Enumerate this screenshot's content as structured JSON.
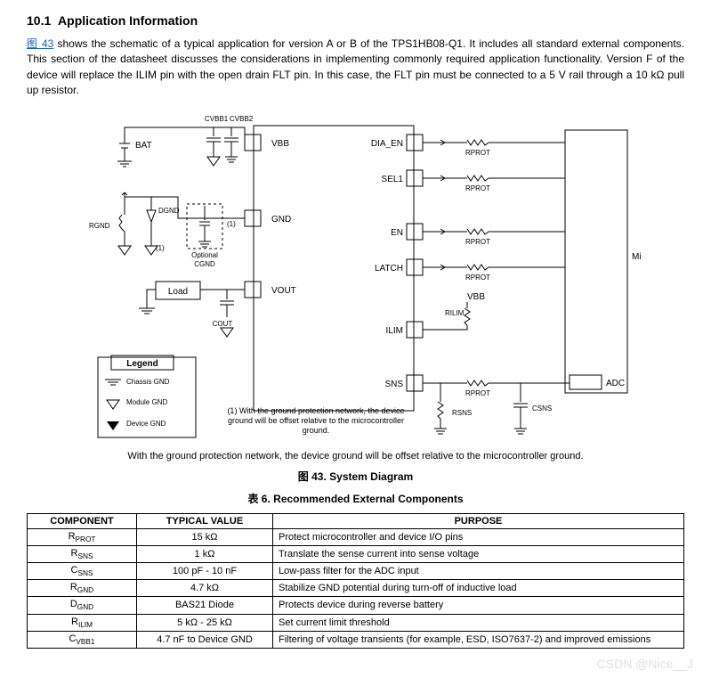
{
  "section": {
    "number": "10.1",
    "title": "Application Information"
  },
  "intro": {
    "figref": "图 43",
    "body": " shows the schematic of a typical application for version A or B of the TPS1HB08-Q1. It includes all standard external components. This section of the datasheet discusses the considerations in implementing commonly required application functionality. Version F of the device will replace the ILIM pin with the open drain FLT pin. In this case, the FLT pin must be connected to a 5 V rail through a 10 kΩ pull up resistor."
  },
  "diagram": {
    "pins_left": [
      "VBB",
      "GND",
      "VOUT"
    ],
    "pins_right": [
      "DIA_EN",
      "SEL1",
      "EN",
      "LATCH",
      "ILIM",
      "SNS"
    ],
    "bat": "BAT",
    "load": "Load",
    "micro": "Microcontroller",
    "adc": "ADC",
    "cvbb1": "CVBB1",
    "cvbb2": "CVBB2",
    "cout": "COUT",
    "optional": "Optional",
    "cgnd": "CGND",
    "rgnd": "RGND",
    "dgnd": "DGND",
    "rprot": "RPROT",
    "rilim": "RILIM",
    "rsns": "RSNS",
    "csns": "CSNS",
    "vbb": "VBB",
    "one": "(1)",
    "legend": {
      "title": "Legend",
      "chassis": "Chassis GND",
      "module": "Module GND",
      "device": "Device GND"
    },
    "note": "(1) With the ground protection network, the device ground will be offset relative to the microcontroller ground."
  },
  "footnote": "With the ground protection network, the device ground will be offset relative to the microcontroller ground.",
  "fig_caption_pre": "图 43.  ",
  "fig_caption": "System Diagram",
  "tbl_caption_pre": "表 6. ",
  "tbl_caption": "Recommended External Components",
  "tbl": {
    "headers": [
      "COMPONENT",
      "TYPICAL VALUE",
      "PURPOSE"
    ],
    "rows": [
      {
        "c": "R<sub>PROT</sub>",
        "v": "15 kΩ",
        "p": "Protect microcontroller and device I/O pins"
      },
      {
        "c": "R<sub>SNS</sub>",
        "v": "1 kΩ",
        "p": "Translate the sense current into sense voltage"
      },
      {
        "c": "C<sub>SNS</sub>",
        "v": "100 pF - 10 nF",
        "p": "Low-pass filter for the ADC input"
      },
      {
        "c": "R<sub>GND</sub>",
        "v": "4.7 kΩ",
        "p": "Stabilize GND potential during turn-off of inductive load"
      },
      {
        "c": "D<sub>GND</sub>",
        "v": "BAS21 Diode",
        "p": "Protects device during reverse battery"
      },
      {
        "c": "R<sub>ILIM</sub>",
        "v": "5 kΩ - 25 kΩ",
        "p": "Set current limit threshold"
      },
      {
        "c": "C<sub>VBB1</sub>",
        "v": "4.7 nF to Device GND",
        "p": "Filtering of voltage transients (for example, ESD, ISO7637-2) and improved emissions"
      }
    ]
  },
  "watermark": "CSDN @Nice__J"
}
